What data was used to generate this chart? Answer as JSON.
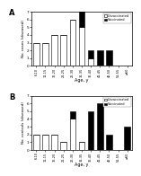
{
  "age_groups": [
    "6-10",
    "11-15",
    "16-20",
    "21-25",
    "26-30",
    "31-35",
    "36-40",
    "41-45",
    "46-50",
    "51-55",
    "≥60"
  ],
  "A_unvax": [
    3,
    3,
    4,
    4,
    6,
    5,
    1,
    0,
    0,
    0,
    0
  ],
  "A_vax": [
    0,
    0,
    0,
    0,
    0,
    3,
    1,
    2,
    2,
    0,
    0
  ],
  "B_unvax": [
    2,
    2,
    2,
    1,
    4,
    1,
    0,
    0,
    0,
    0,
    0
  ],
  "B_vax": [
    0,
    0,
    0,
    0,
    1,
    0,
    5,
    6,
    2,
    0,
    3
  ],
  "ylabel_A": "No. cases (diseased)",
  "ylabel_B": "No. controls (diseased)",
  "xlabel": "Age, y",
  "ylim": [
    0,
    7
  ],
  "yticks": [
    0,
    1,
    2,
    3,
    4,
    5,
    6,
    7
  ],
  "color_unvax": "white",
  "color_vax": "black",
  "edgecolor": "black",
  "label_unvax": "Unvaccinated",
  "label_vax": "Vaccinated",
  "panel_A": "A",
  "panel_B": "B"
}
